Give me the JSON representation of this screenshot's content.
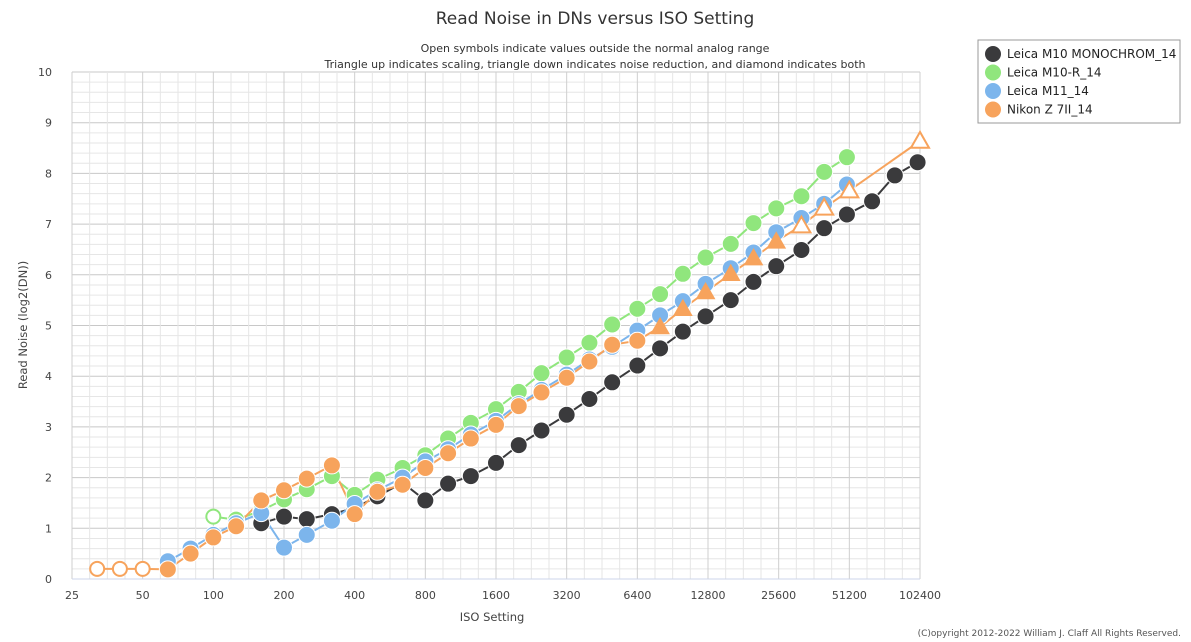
{
  "chart_data": {
    "type": "line",
    "title": "Read Noise in DNs versus ISO Setting",
    "subtitle_lines": [
      "Open symbols indicate values outside the normal analog range",
      "Triangle up indicates scaling, triangle down indicates noise reduction, and diamond indicates both"
    ],
    "xlabel": "ISO Setting",
    "ylabel": "Read Noise (log2(DN))",
    "x_scale": "log2",
    "xlim": [
      25,
      102400
    ],
    "ylim": [
      0,
      10
    ],
    "x_ticks": [
      "25",
      "50",
      "100",
      "200",
      "400",
      "800",
      "1600",
      "3200",
      "6400",
      "12800",
      "25600",
      "51200",
      "102400"
    ],
    "y_ticks": [
      "0",
      "1",
      "2",
      "3",
      "4",
      "5",
      "6",
      "7",
      "8",
      "9",
      "10"
    ],
    "legend_position": "top-right",
    "grid": true,
    "copyright": "(C)opyright 2012-2022 William J. Claff All Rights Reserved.",
    "series": [
      {
        "name": "Leica M10 MONOCHROM_14",
        "color": "#3a3a3c",
        "points": [
          {
            "x": 160,
            "y": 1.1,
            "s": "circle"
          },
          {
            "x": 200,
            "y": 1.23,
            "s": "circle"
          },
          {
            "x": 250,
            "y": 1.18,
            "s": "circle"
          },
          {
            "x": 320,
            "y": 1.28,
            "s": "circle"
          },
          {
            "x": 400,
            "y": 1.4,
            "s": "circle"
          },
          {
            "x": 500,
            "y": 1.63,
            "s": "circle"
          },
          {
            "x": 640,
            "y": 1.9,
            "s": "circle"
          },
          {
            "x": 800,
            "y": 1.55,
            "s": "circle"
          },
          {
            "x": 1000,
            "y": 1.88,
            "s": "circle"
          },
          {
            "x": 1250,
            "y": 2.03,
            "s": "circle"
          },
          {
            "x": 1600,
            "y": 2.29,
            "s": "circle"
          },
          {
            "x": 2000,
            "y": 2.64,
            "s": "circle"
          },
          {
            "x": 2500,
            "y": 2.93,
            "s": "circle"
          },
          {
            "x": 3200,
            "y": 3.24,
            "s": "circle"
          },
          {
            "x": 4000,
            "y": 3.55,
            "s": "circle"
          },
          {
            "x": 5000,
            "y": 3.88,
            "s": "circle"
          },
          {
            "x": 6400,
            "y": 4.21,
            "s": "circle"
          },
          {
            "x": 8000,
            "y": 4.55,
            "s": "circle"
          },
          {
            "x": 10000,
            "y": 4.88,
            "s": "circle"
          },
          {
            "x": 12500,
            "y": 5.18,
            "s": "circle"
          },
          {
            "x": 16000,
            "y": 5.5,
            "s": "circle"
          },
          {
            "x": 20000,
            "y": 5.86,
            "s": "circle"
          },
          {
            "x": 25000,
            "y": 6.17,
            "s": "circle"
          },
          {
            "x": 32000,
            "y": 6.49,
            "s": "circle"
          },
          {
            "x": 40000,
            "y": 6.92,
            "s": "circle"
          },
          {
            "x": 50000,
            "y": 7.19,
            "s": "circle"
          },
          {
            "x": 64000,
            "y": 7.45,
            "s": "circle"
          },
          {
            "x": 80000,
            "y": 7.96,
            "s": "circle"
          },
          {
            "x": 100000,
            "y": 8.22,
            "s": "circle"
          }
        ]
      },
      {
        "name": "Leica M10-R_14",
        "color": "#90e67d",
        "points": [
          {
            "x": 100,
            "y": 1.23,
            "s": "circle-open"
          },
          {
            "x": 125,
            "y": 1.17,
            "s": "circle"
          },
          {
            "x": 160,
            "y": 1.35,
            "s": "circle"
          },
          {
            "x": 200,
            "y": 1.57,
            "s": "circle"
          },
          {
            "x": 250,
            "y": 1.77,
            "s": "circle"
          },
          {
            "x": 320,
            "y": 2.03,
            "s": "circle"
          },
          {
            "x": 400,
            "y": 1.66,
            "s": "circle"
          },
          {
            "x": 500,
            "y": 1.96,
            "s": "circle"
          },
          {
            "x": 640,
            "y": 2.19,
            "s": "circle"
          },
          {
            "x": 800,
            "y": 2.44,
            "s": "circle"
          },
          {
            "x": 1000,
            "y": 2.77,
            "s": "circle"
          },
          {
            "x": 1250,
            "y": 3.08,
            "s": "circle"
          },
          {
            "x": 1600,
            "y": 3.35,
            "s": "circle"
          },
          {
            "x": 2000,
            "y": 3.69,
            "s": "circle"
          },
          {
            "x": 2500,
            "y": 4.06,
            "s": "circle"
          },
          {
            "x": 3200,
            "y": 4.37,
            "s": "circle"
          },
          {
            "x": 4000,
            "y": 4.66,
            "s": "circle"
          },
          {
            "x": 5000,
            "y": 5.02,
            "s": "circle"
          },
          {
            "x": 6400,
            "y": 5.33,
            "s": "circle"
          },
          {
            "x": 8000,
            "y": 5.62,
            "s": "circle"
          },
          {
            "x": 10000,
            "y": 6.02,
            "s": "circle"
          },
          {
            "x": 12500,
            "y": 6.34,
            "s": "circle"
          },
          {
            "x": 16000,
            "y": 6.61,
            "s": "circle"
          },
          {
            "x": 20000,
            "y": 7.02,
            "s": "circle"
          },
          {
            "x": 25000,
            "y": 7.31,
            "s": "circle"
          },
          {
            "x": 32000,
            "y": 7.55,
            "s": "circle"
          },
          {
            "x": 40000,
            "y": 8.03,
            "s": "circle"
          },
          {
            "x": 50000,
            "y": 8.32,
            "s": "circle"
          }
        ]
      },
      {
        "name": "Leica M11_14",
        "color": "#7cb5ec",
        "points": [
          {
            "x": 64,
            "y": 0.35,
            "s": "circle"
          },
          {
            "x": 80,
            "y": 0.6,
            "s": "circle"
          },
          {
            "x": 100,
            "y": 0.87,
            "s": "circle"
          },
          {
            "x": 125,
            "y": 1.1,
            "s": "circle"
          },
          {
            "x": 160,
            "y": 1.3,
            "s": "circle"
          },
          {
            "x": 200,
            "y": 0.62,
            "s": "circle"
          },
          {
            "x": 250,
            "y": 0.87,
            "s": "circle"
          },
          {
            "x": 320,
            "y": 1.15,
            "s": "circle"
          },
          {
            "x": 400,
            "y": 1.48,
            "s": "circle"
          },
          {
            "x": 500,
            "y": 1.75,
            "s": "circle"
          },
          {
            "x": 640,
            "y": 2.0,
            "s": "circle"
          },
          {
            "x": 800,
            "y": 2.32,
            "s": "circle"
          },
          {
            "x": 1000,
            "y": 2.56,
            "s": "circle"
          },
          {
            "x": 1250,
            "y": 2.85,
            "s": "circle"
          },
          {
            "x": 1600,
            "y": 3.12,
            "s": "circle"
          },
          {
            "x": 2000,
            "y": 3.45,
            "s": "circle"
          },
          {
            "x": 2500,
            "y": 3.73,
            "s": "circle"
          },
          {
            "x": 3200,
            "y": 4.03,
            "s": "circle"
          },
          {
            "x": 4000,
            "y": 4.33,
            "s": "circle"
          },
          {
            "x": 5000,
            "y": 4.58,
            "s": "circle"
          },
          {
            "x": 6400,
            "y": 4.9,
            "s": "circle"
          },
          {
            "x": 8000,
            "y": 5.2,
            "s": "circle"
          },
          {
            "x": 10000,
            "y": 5.48,
            "s": "circle"
          },
          {
            "x": 12500,
            "y": 5.82,
            "s": "circle"
          },
          {
            "x": 16000,
            "y": 6.13,
            "s": "circle"
          },
          {
            "x": 20000,
            "y": 6.44,
            "s": "circle"
          },
          {
            "x": 25000,
            "y": 6.84,
            "s": "circle"
          },
          {
            "x": 32000,
            "y": 7.12,
            "s": "circle"
          },
          {
            "x": 40000,
            "y": 7.4,
            "s": "circle"
          },
          {
            "x": 50000,
            "y": 7.78,
            "s": "circle"
          }
        ]
      },
      {
        "name": "Nikon Z 7II_14",
        "color": "#f7a35c",
        "points": [
          {
            "x": 32,
            "y": 0.2,
            "s": "circle-open"
          },
          {
            "x": 40,
            "y": 0.2,
            "s": "circle-open"
          },
          {
            "x": 50,
            "y": 0.2,
            "s": "circle-open"
          },
          {
            "x": 64,
            "y": 0.19,
            "s": "circle"
          },
          {
            "x": 80,
            "y": 0.5,
            "s": "circle"
          },
          {
            "x": 100,
            "y": 0.82,
            "s": "circle"
          },
          {
            "x": 125,
            "y": 1.04,
            "s": "circle"
          },
          {
            "x": 160,
            "y": 1.55,
            "s": "circle"
          },
          {
            "x": 200,
            "y": 1.75,
            "s": "circle"
          },
          {
            "x": 250,
            "y": 1.98,
            "s": "circle"
          },
          {
            "x": 320,
            "y": 2.24,
            "s": "circle"
          },
          {
            "x": 400,
            "y": 1.28,
            "s": "circle"
          },
          {
            "x": 500,
            "y": 1.72,
            "s": "circle"
          },
          {
            "x": 640,
            "y": 1.86,
            "s": "circle"
          },
          {
            "x": 800,
            "y": 2.19,
            "s": "circle"
          },
          {
            "x": 1000,
            "y": 2.48,
            "s": "circle"
          },
          {
            "x": 1250,
            "y": 2.77,
            "s": "circle"
          },
          {
            "x": 1600,
            "y": 3.04,
            "s": "circle"
          },
          {
            "x": 2000,
            "y": 3.41,
            "s": "circle"
          },
          {
            "x": 2500,
            "y": 3.68,
            "s": "circle"
          },
          {
            "x": 3200,
            "y": 3.97,
            "s": "circle"
          },
          {
            "x": 4000,
            "y": 4.29,
            "s": "circle"
          },
          {
            "x": 5000,
            "y": 4.62,
            "s": "circle"
          },
          {
            "x": 6400,
            "y": 4.7,
            "s": "circle"
          },
          {
            "x": 8000,
            "y": 4.97,
            "s": "triangle-up"
          },
          {
            "x": 10000,
            "y": 5.33,
            "s": "triangle-up"
          },
          {
            "x": 12500,
            "y": 5.66,
            "s": "triangle-up"
          },
          {
            "x": 16000,
            "y": 6.02,
            "s": "triangle-up"
          },
          {
            "x": 20000,
            "y": 6.33,
            "s": "triangle-up"
          },
          {
            "x": 25000,
            "y": 6.66,
            "s": "triangle-up"
          },
          {
            "x": 32000,
            "y": 6.97,
            "s": "triangle-up-open"
          },
          {
            "x": 40000,
            "y": 7.32,
            "s": "triangle-up-open"
          },
          {
            "x": 51200,
            "y": 7.66,
            "s": "triangle-up-open"
          },
          {
            "x": 102400,
            "y": 8.64,
            "s": "triangle-up-open"
          }
        ]
      }
    ]
  }
}
